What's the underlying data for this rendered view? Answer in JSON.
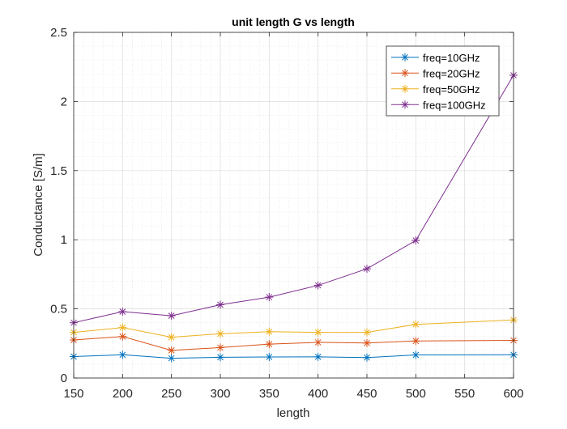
{
  "chart_data": {
    "type": "line",
    "title": "unit length G vs length",
    "xlabel": "length",
    "ylabel": "Conductance [S/m]",
    "xlim": [
      150,
      600
    ],
    "ylim": [
      0,
      2.5
    ],
    "xticks": [
      150,
      200,
      250,
      300,
      350,
      400,
      450,
      500,
      550,
      600
    ],
    "yticks": [
      0,
      0.5,
      1,
      1.5,
      2,
      2.5
    ],
    "xtick_labels": [
      "150",
      "200",
      "250",
      "300",
      "350",
      "400",
      "450",
      "500",
      "550",
      "600"
    ],
    "ytick_labels": [
      "0",
      "0.5",
      "1",
      "1.5",
      "2",
      "2.5"
    ],
    "grid": true,
    "minor_grid": true,
    "legend_position": "top-right",
    "x": [
      150,
      200,
      250,
      300,
      350,
      400,
      450,
      500,
      600
    ],
    "series": [
      {
        "name": "freq=10GHz",
        "color": "#0072BD",
        "marker": "asterisk",
        "values": [
          0.155,
          0.168,
          0.143,
          0.15,
          0.152,
          0.153,
          0.148,
          0.167,
          0.168
        ]
      },
      {
        "name": "freq=20GHz",
        "color": "#D95319",
        "marker": "asterisk",
        "values": [
          0.275,
          0.3,
          0.2,
          0.22,
          0.245,
          0.258,
          0.253,
          0.268,
          0.272
        ]
      },
      {
        "name": "freq=50GHz",
        "color": "#EDB120",
        "marker": "asterisk",
        "values": [
          0.33,
          0.365,
          0.295,
          0.32,
          0.335,
          0.33,
          0.33,
          0.388,
          0.42
        ]
      },
      {
        "name": "freq=100GHz",
        "color": "#7E2F8E",
        "marker": "asterisk",
        "values": [
          0.4,
          0.48,
          0.45,
          0.53,
          0.585,
          0.67,
          0.79,
          0.995,
          2.19
        ]
      }
    ]
  }
}
